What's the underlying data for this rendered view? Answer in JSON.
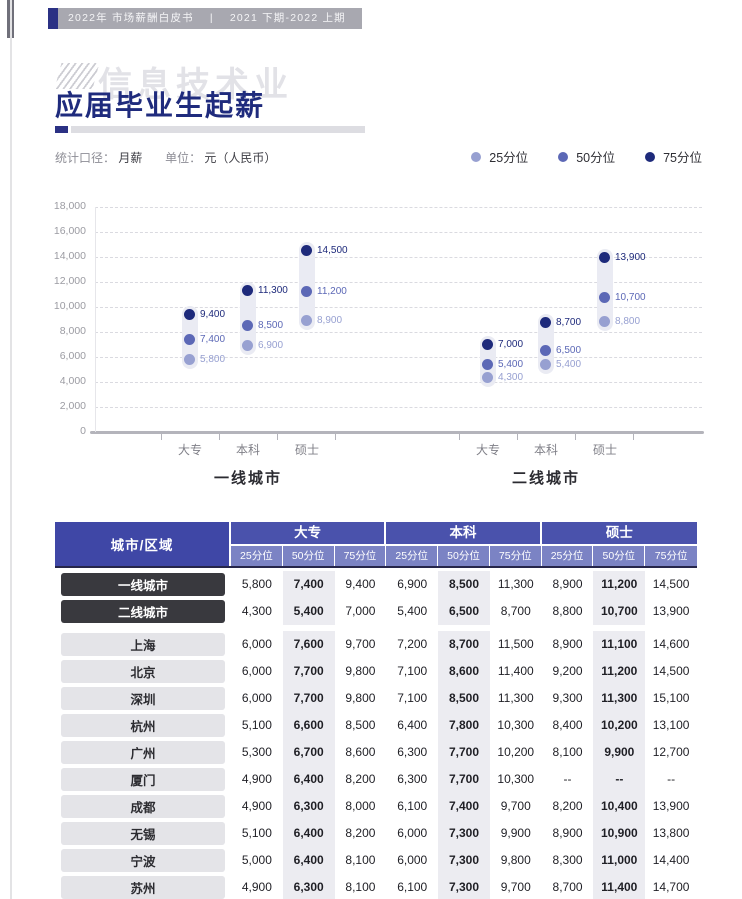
{
  "header": {
    "bar": {
      "left": "2022年 市场薪酬白皮书",
      "sep": "|",
      "right": "2021 下期-2022 上期"
    },
    "watermark": "信息技术业",
    "title": "应届毕业生起薪"
  },
  "meta": {
    "stat_label": "统计口径：",
    "stat_value": "月薪",
    "unit_label": "单位：",
    "unit_value": "元（人民币）"
  },
  "colors": {
    "p25": "#97a0d1",
    "p50": "#5c68b6",
    "p75": "#1e2a7b"
  },
  "legend": {
    "items": [
      {
        "key": "p25",
        "label": "25分位"
      },
      {
        "key": "p50",
        "label": "50分位"
      },
      {
        "key": "p75",
        "label": "75分位"
      }
    ]
  },
  "chart_data": {
    "type": "scatter",
    "title": "应届毕业生起薪",
    "ylabel": "元（人民币）",
    "ylim": [
      0,
      18000
    ],
    "ytick_step": 2000,
    "grid": true,
    "legend_position": "top-right",
    "series_labels": [
      "25分位",
      "50分位",
      "75分位"
    ],
    "groups": [
      {
        "label": "一线城市",
        "categories": [
          "大专",
          "本科",
          "硕士"
        ],
        "points": [
          {
            "p25": 5800,
            "p50": 7400,
            "p75": 9400
          },
          {
            "p25": 6900,
            "p50": 8500,
            "p75": 11300
          },
          {
            "p25": 8900,
            "p50": 11200,
            "p75": 14500
          }
        ]
      },
      {
        "label": "二线城市",
        "categories": [
          "大专",
          "本科",
          "硕士"
        ],
        "points": [
          {
            "p25": 4300,
            "p50": 5400,
            "p75": 7000
          },
          {
            "p25": 5400,
            "p50": 6500,
            "p75": 8700
          },
          {
            "p25": 8800,
            "p50": 10700,
            "p75": 13900
          }
        ]
      }
    ]
  },
  "table": {
    "corner": "城市/区域",
    "groups": [
      "大专",
      "本科",
      "硕士"
    ],
    "subs": [
      "25分位",
      "50分位",
      "75分位"
    ],
    "rows": [
      {
        "name": "一线城市",
        "type": "region",
        "values": [
          "5,800",
          "7,400",
          "9,400",
          "6,900",
          "8,500",
          "11,300",
          "8,900",
          "11,200",
          "14,500"
        ]
      },
      {
        "name": "二线城市",
        "type": "region",
        "values": [
          "4,300",
          "5,400",
          "7,000",
          "5,400",
          "6,500",
          "8,700",
          "8,800",
          "10,700",
          "13,900"
        ]
      },
      {
        "name": "上海",
        "type": "city",
        "values": [
          "6,000",
          "7,600",
          "9,700",
          "7,200",
          "8,700",
          "11,500",
          "8,900",
          "11,100",
          "14,600"
        ]
      },
      {
        "name": "北京",
        "type": "city",
        "values": [
          "6,000",
          "7,700",
          "9,800",
          "7,100",
          "8,600",
          "11,400",
          "9,200",
          "11,200",
          "14,500"
        ]
      },
      {
        "name": "深圳",
        "type": "city",
        "values": [
          "6,000",
          "7,700",
          "9,800",
          "7,100",
          "8,500",
          "11,300",
          "9,300",
          "11,300",
          "15,100"
        ]
      },
      {
        "name": "杭州",
        "type": "city",
        "values": [
          "5,100",
          "6,600",
          "8,500",
          "6,400",
          "7,800",
          "10,300",
          "8,400",
          "10,200",
          "13,100"
        ]
      },
      {
        "name": "广州",
        "type": "city",
        "values": [
          "5,300",
          "6,700",
          "8,600",
          "6,300",
          "7,700",
          "10,200",
          "8,100",
          "9,900",
          "12,700"
        ]
      },
      {
        "name": "厦门",
        "type": "city",
        "values": [
          "4,900",
          "6,400",
          "8,200",
          "6,300",
          "7,700",
          "10,300",
          "--",
          "--",
          "--"
        ]
      },
      {
        "name": "成都",
        "type": "city",
        "values": [
          "4,900",
          "6,300",
          "8,000",
          "6,100",
          "7,400",
          "9,700",
          "8,200",
          "10,400",
          "13,900"
        ]
      },
      {
        "name": "无锡",
        "type": "city",
        "values": [
          "5,100",
          "6,400",
          "8,200",
          "6,000",
          "7,300",
          "9,900",
          "8,900",
          "10,900",
          "13,800"
        ]
      },
      {
        "name": "宁波",
        "type": "city",
        "values": [
          "5,000",
          "6,400",
          "8,100",
          "6,000",
          "7,300",
          "9,800",
          "8,300",
          "11,000",
          "14,400"
        ]
      },
      {
        "name": "苏州",
        "type": "city",
        "values": [
          "4,900",
          "6,300",
          "8,100",
          "6,100",
          "7,300",
          "9,700",
          "8,700",
          "11,400",
          "14,700"
        ]
      }
    ]
  }
}
